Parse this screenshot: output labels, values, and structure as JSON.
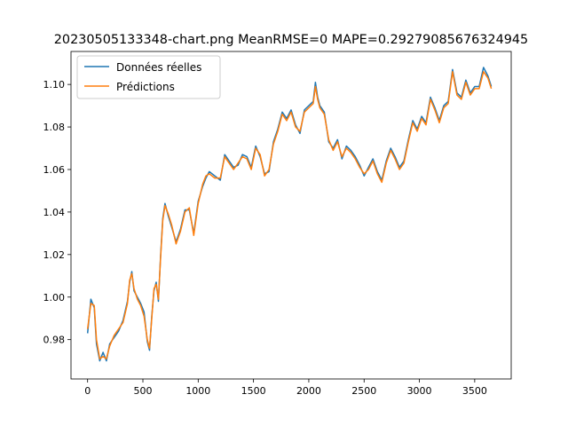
{
  "chart_data": {
    "type": "line",
    "title": "20230505133348-chart.png MeanRMSE=0 MAPE=0.29279085676324945",
    "xlabel": "",
    "ylabel": "",
    "xlim": [
      -150,
      3830
    ],
    "ylim": [
      0.9615,
      1.1155
    ],
    "x_ticks": [
      0,
      500,
      1000,
      1500,
      2000,
      2500,
      3000,
      3500
    ],
    "x_tick_labels": [
      "0",
      "500",
      "1000",
      "1500",
      "2000",
      "2500",
      "3000",
      "3500"
    ],
    "y_ticks": [
      0.98,
      1.0,
      1.02,
      1.04,
      1.06,
      1.08,
      1.1
    ],
    "y_tick_labels": [
      "0.98",
      "1.00",
      "1.02",
      "1.04",
      "1.06",
      "1.08",
      "1.10"
    ],
    "grid": false,
    "legend_position": "top-left",
    "series": [
      {
        "name": "Données réelles",
        "color": "#1f77b4",
        "x": [
          0,
          30,
          60,
          80,
          110,
          140,
          170,
          200,
          240,
          280,
          320,
          360,
          380,
          400,
          420,
          450,
          480,
          510,
          540,
          560,
          580,
          600,
          620,
          640,
          660,
          680,
          700,
          730,
          760,
          800,
          840,
          880,
          920,
          960,
          1000,
          1040,
          1070,
          1100,
          1150,
          1200,
          1240,
          1280,
          1320,
          1360,
          1400,
          1440,
          1480,
          1520,
          1560,
          1600,
          1640,
          1680,
          1720,
          1760,
          1800,
          1840,
          1880,
          1920,
          1960,
          2000,
          2040,
          2060,
          2080,
          2100,
          2140,
          2180,
          2220,
          2260,
          2300,
          2340,
          2380,
          2420,
          2460,
          2500,
          2540,
          2580,
          2620,
          2660,
          2700,
          2740,
          2780,
          2820,
          2860,
          2900,
          2940,
          2980,
          3020,
          3060,
          3100,
          3140,
          3180,
          3220,
          3260,
          3300,
          3340,
          3380,
          3420,
          3460,
          3500,
          3540,
          3580,
          3620,
          3650
        ],
        "y": [
          0.983,
          0.999,
          0.995,
          0.978,
          0.97,
          0.974,
          0.97,
          0.978,
          0.981,
          0.984,
          0.989,
          0.998,
          1.007,
          1.012,
          1.003,
          1.0,
          0.997,
          0.993,
          0.979,
          0.975,
          0.991,
          1.003,
          1.007,
          0.998,
          1.019,
          1.037,
          1.044,
          1.038,
          1.033,
          1.026,
          1.032,
          1.041,
          1.041,
          1.03,
          1.045,
          1.052,
          1.056,
          1.059,
          1.057,
          1.055,
          1.067,
          1.064,
          1.061,
          1.062,
          1.067,
          1.066,
          1.061,
          1.071,
          1.066,
          1.058,
          1.059,
          1.073,
          1.079,
          1.087,
          1.084,
          1.088,
          1.081,
          1.077,
          1.088,
          1.09,
          1.092,
          1.101,
          1.094,
          1.09,
          1.087,
          1.073,
          1.07,
          1.074,
          1.065,
          1.071,
          1.069,
          1.066,
          1.062,
          1.057,
          1.061,
          1.065,
          1.059,
          1.055,
          1.064,
          1.07,
          1.066,
          1.061,
          1.064,
          1.074,
          1.083,
          1.079,
          1.085,
          1.082,
          1.094,
          1.089,
          1.083,
          1.09,
          1.092,
          1.107,
          1.096,
          1.094,
          1.102,
          1.096,
          1.099,
          1.099,
          1.108,
          1.104,
          1.099
        ]
      },
      {
        "name": "Prédictions",
        "color": "#ff7f0e",
        "x": [
          0,
          30,
          60,
          80,
          110,
          140,
          170,
          200,
          240,
          280,
          320,
          360,
          380,
          400,
          420,
          450,
          480,
          510,
          540,
          560,
          580,
          600,
          620,
          640,
          660,
          680,
          700,
          730,
          760,
          800,
          840,
          880,
          920,
          960,
          1000,
          1040,
          1070,
          1100,
          1150,
          1200,
          1240,
          1280,
          1320,
          1360,
          1400,
          1440,
          1480,
          1520,
          1560,
          1600,
          1640,
          1680,
          1720,
          1760,
          1800,
          1840,
          1880,
          1920,
          1960,
          2000,
          2040,
          2060,
          2080,
          2100,
          2140,
          2180,
          2220,
          2260,
          2300,
          2340,
          2380,
          2420,
          2460,
          2500,
          2540,
          2580,
          2620,
          2660,
          2700,
          2740,
          2780,
          2820,
          2860,
          2900,
          2940,
          2980,
          3020,
          3060,
          3100,
          3140,
          3180,
          3220,
          3260,
          3300,
          3340,
          3380,
          3420,
          3460,
          3500,
          3540,
          3580,
          3620,
          3650
        ],
        "y": [
          0.985,
          0.997,
          0.996,
          0.98,
          0.971,
          0.972,
          0.971,
          0.977,
          0.982,
          0.985,
          0.988,
          0.997,
          1.008,
          1.011,
          1.004,
          0.999,
          0.996,
          0.991,
          0.98,
          0.976,
          0.99,
          1.004,
          1.006,
          0.999,
          1.018,
          1.036,
          1.043,
          1.039,
          1.034,
          1.025,
          1.031,
          1.04,
          1.042,
          1.029,
          1.044,
          1.053,
          1.057,
          1.058,
          1.056,
          1.056,
          1.066,
          1.063,
          1.06,
          1.063,
          1.066,
          1.065,
          1.06,
          1.07,
          1.067,
          1.057,
          1.06,
          1.072,
          1.078,
          1.086,
          1.083,
          1.087,
          1.08,
          1.078,
          1.087,
          1.089,
          1.091,
          1.099,
          1.093,
          1.089,
          1.086,
          1.074,
          1.069,
          1.073,
          1.066,
          1.07,
          1.068,
          1.065,
          1.061,
          1.058,
          1.06,
          1.064,
          1.058,
          1.054,
          1.063,
          1.069,
          1.065,
          1.06,
          1.063,
          1.073,
          1.082,
          1.078,
          1.084,
          1.081,
          1.093,
          1.088,
          1.082,
          1.089,
          1.091,
          1.106,
          1.095,
          1.093,
          1.101,
          1.095,
          1.098,
          1.098,
          1.106,
          1.103,
          1.098
        ]
      }
    ]
  }
}
